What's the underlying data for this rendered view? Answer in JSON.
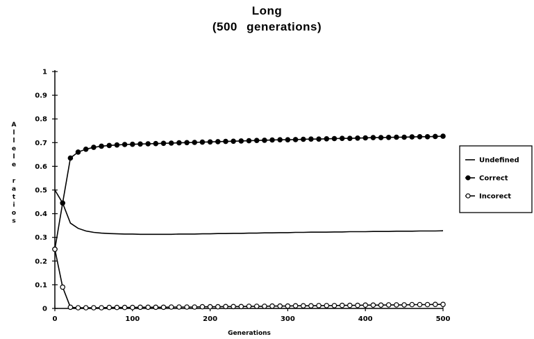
{
  "chart_data": {
    "type": "line",
    "title_line1": "Long",
    "title_line2": "(500 generations)",
    "xlabel": "Generations",
    "ylabel": "Allele ratios",
    "xlim": [
      0,
      500
    ],
    "ylim": [
      0,
      1
    ],
    "x_ticks": [
      0,
      100,
      200,
      300,
      400,
      500
    ],
    "y_ticks": [
      0,
      0.1,
      0.2,
      0.3,
      0.4,
      0.5,
      0.6,
      0.7,
      0.8,
      0.9,
      1
    ],
    "grid": false,
    "legend_position": "right",
    "x": [
      0,
      10,
      20,
      30,
      40,
      50,
      60,
      70,
      80,
      90,
      100,
      110,
      120,
      130,
      140,
      150,
      160,
      170,
      180,
      190,
      200,
      210,
      220,
      230,
      240,
      250,
      260,
      270,
      280,
      290,
      300,
      310,
      320,
      330,
      340,
      350,
      360,
      370,
      380,
      390,
      400,
      410,
      420,
      430,
      440,
      450,
      460,
      470,
      480,
      490,
      500
    ],
    "series": [
      {
        "name": "Undefined",
        "marker": "none",
        "values": [
          0.5,
          0.445,
          0.36,
          0.338,
          0.327,
          0.321,
          0.318,
          0.316,
          0.315,
          0.314,
          0.314,
          0.313,
          0.313,
          0.313,
          0.313,
          0.313,
          0.314,
          0.314,
          0.314,
          0.315,
          0.315,
          0.316,
          0.316,
          0.317,
          0.317,
          0.318,
          0.318,
          0.319,
          0.319,
          0.32,
          0.32,
          0.321,
          0.321,
          0.322,
          0.322,
          0.322,
          0.323,
          0.323,
          0.324,
          0.324,
          0.324,
          0.325,
          0.325,
          0.325,
          0.326,
          0.326,
          0.326,
          0.327,
          0.327,
          0.327,
          0.328
        ]
      },
      {
        "name": "Correct",
        "marker": "filled-circle",
        "values": [
          0.25,
          0.445,
          0.635,
          0.66,
          0.672,
          0.68,
          0.685,
          0.688,
          0.69,
          0.692,
          0.693,
          0.694,
          0.695,
          0.696,
          0.697,
          0.698,
          0.699,
          0.7,
          0.701,
          0.702,
          0.703,
          0.704,
          0.705,
          0.706,
          0.707,
          0.708,
          0.709,
          0.71,
          0.711,
          0.712,
          0.712,
          0.713,
          0.714,
          0.715,
          0.715,
          0.716,
          0.717,
          0.718,
          0.718,
          0.719,
          0.72,
          0.721,
          0.721,
          0.722,
          0.723,
          0.723,
          0.724,
          0.725,
          0.725,
          0.726,
          0.727
        ]
      },
      {
        "name": "Incorect",
        "marker": "open-circle",
        "values": [
          0.25,
          0.09,
          0.005,
          0.003,
          0.003,
          0.003,
          0.003,
          0.004,
          0.004,
          0.004,
          0.004,
          0.005,
          0.005,
          0.005,
          0.005,
          0.006,
          0.006,
          0.006,
          0.006,
          0.007,
          0.007,
          0.007,
          0.008,
          0.008,
          0.008,
          0.009,
          0.009,
          0.009,
          0.01,
          0.01,
          0.01,
          0.011,
          0.011,
          0.011,
          0.012,
          0.012,
          0.012,
          0.013,
          0.013,
          0.013,
          0.014,
          0.014,
          0.014,
          0.015,
          0.015,
          0.015,
          0.016,
          0.016,
          0.016,
          0.017,
          0.017
        ]
      }
    ]
  }
}
